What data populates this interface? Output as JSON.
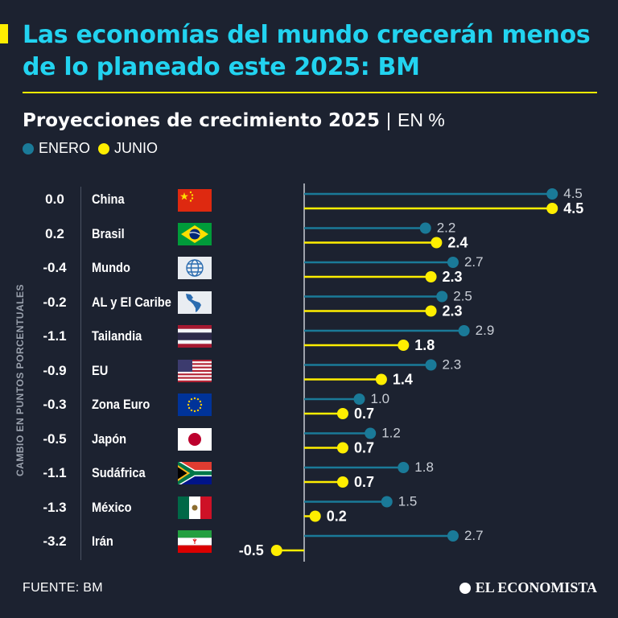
{
  "header": {
    "title": "Las economías del mundo crecerán menos de lo planeado este 2025: BM",
    "subtitle": "Proyecciones de crecimiento 2025",
    "subtitle_sep": "|",
    "unit": "EN %"
  },
  "legend": [
    {
      "label": "ENERO",
      "color": "#1a7a98"
    },
    {
      "label": "JUNIO",
      "color": "#ffee00"
    }
  ],
  "side_label": "CAMBIO EN PUNTOS PORCENTUALES",
  "footer": {
    "source": "FUENTE: BM",
    "brand": "EL ECONOMISTA"
  },
  "chart_data": {
    "type": "bar",
    "title": "Proyecciones de crecimiento 2025",
    "unit": "EN %",
    "categories": [
      "China",
      "Brasil",
      "Mundo",
      "AL y El Caribe",
      "Tailandia",
      "EU",
      "Zona Euro",
      "Japón",
      "Sudáfrica",
      "México",
      "Irán"
    ],
    "change": [
      "0.0",
      "0.2",
      "-0.4",
      "-0.2",
      "-1.1",
      "-0.9",
      "-0.3",
      "-0.5",
      "-1.1",
      "-1.3",
      "-3.2"
    ],
    "series": [
      {
        "name": "ENERO",
        "color": "#1a7a98",
        "values": [
          4.5,
          2.2,
          2.7,
          2.5,
          2.9,
          2.3,
          1.0,
          1.2,
          1.8,
          1.5,
          2.7
        ],
        "labels": [
          "4.5",
          "2.2",
          "2.7",
          "2.5",
          "2.9",
          "2.3",
          "1.0",
          "1.2",
          "1.8",
          "1.5",
          "2.7"
        ]
      },
      {
        "name": "JUNIO",
        "color": "#ffee00",
        "values": [
          4.5,
          2.4,
          2.3,
          2.3,
          1.8,
          1.4,
          0.7,
          0.7,
          0.7,
          0.2,
          -0.5
        ],
        "labels": [
          "4.5",
          "2.4",
          "2.3",
          "2.3",
          "1.8",
          "1.4",
          "0.7",
          "0.7",
          "0.7",
          "0.2",
          "-0.5"
        ]
      }
    ],
    "xlim": [
      -0.5,
      4.5
    ]
  }
}
